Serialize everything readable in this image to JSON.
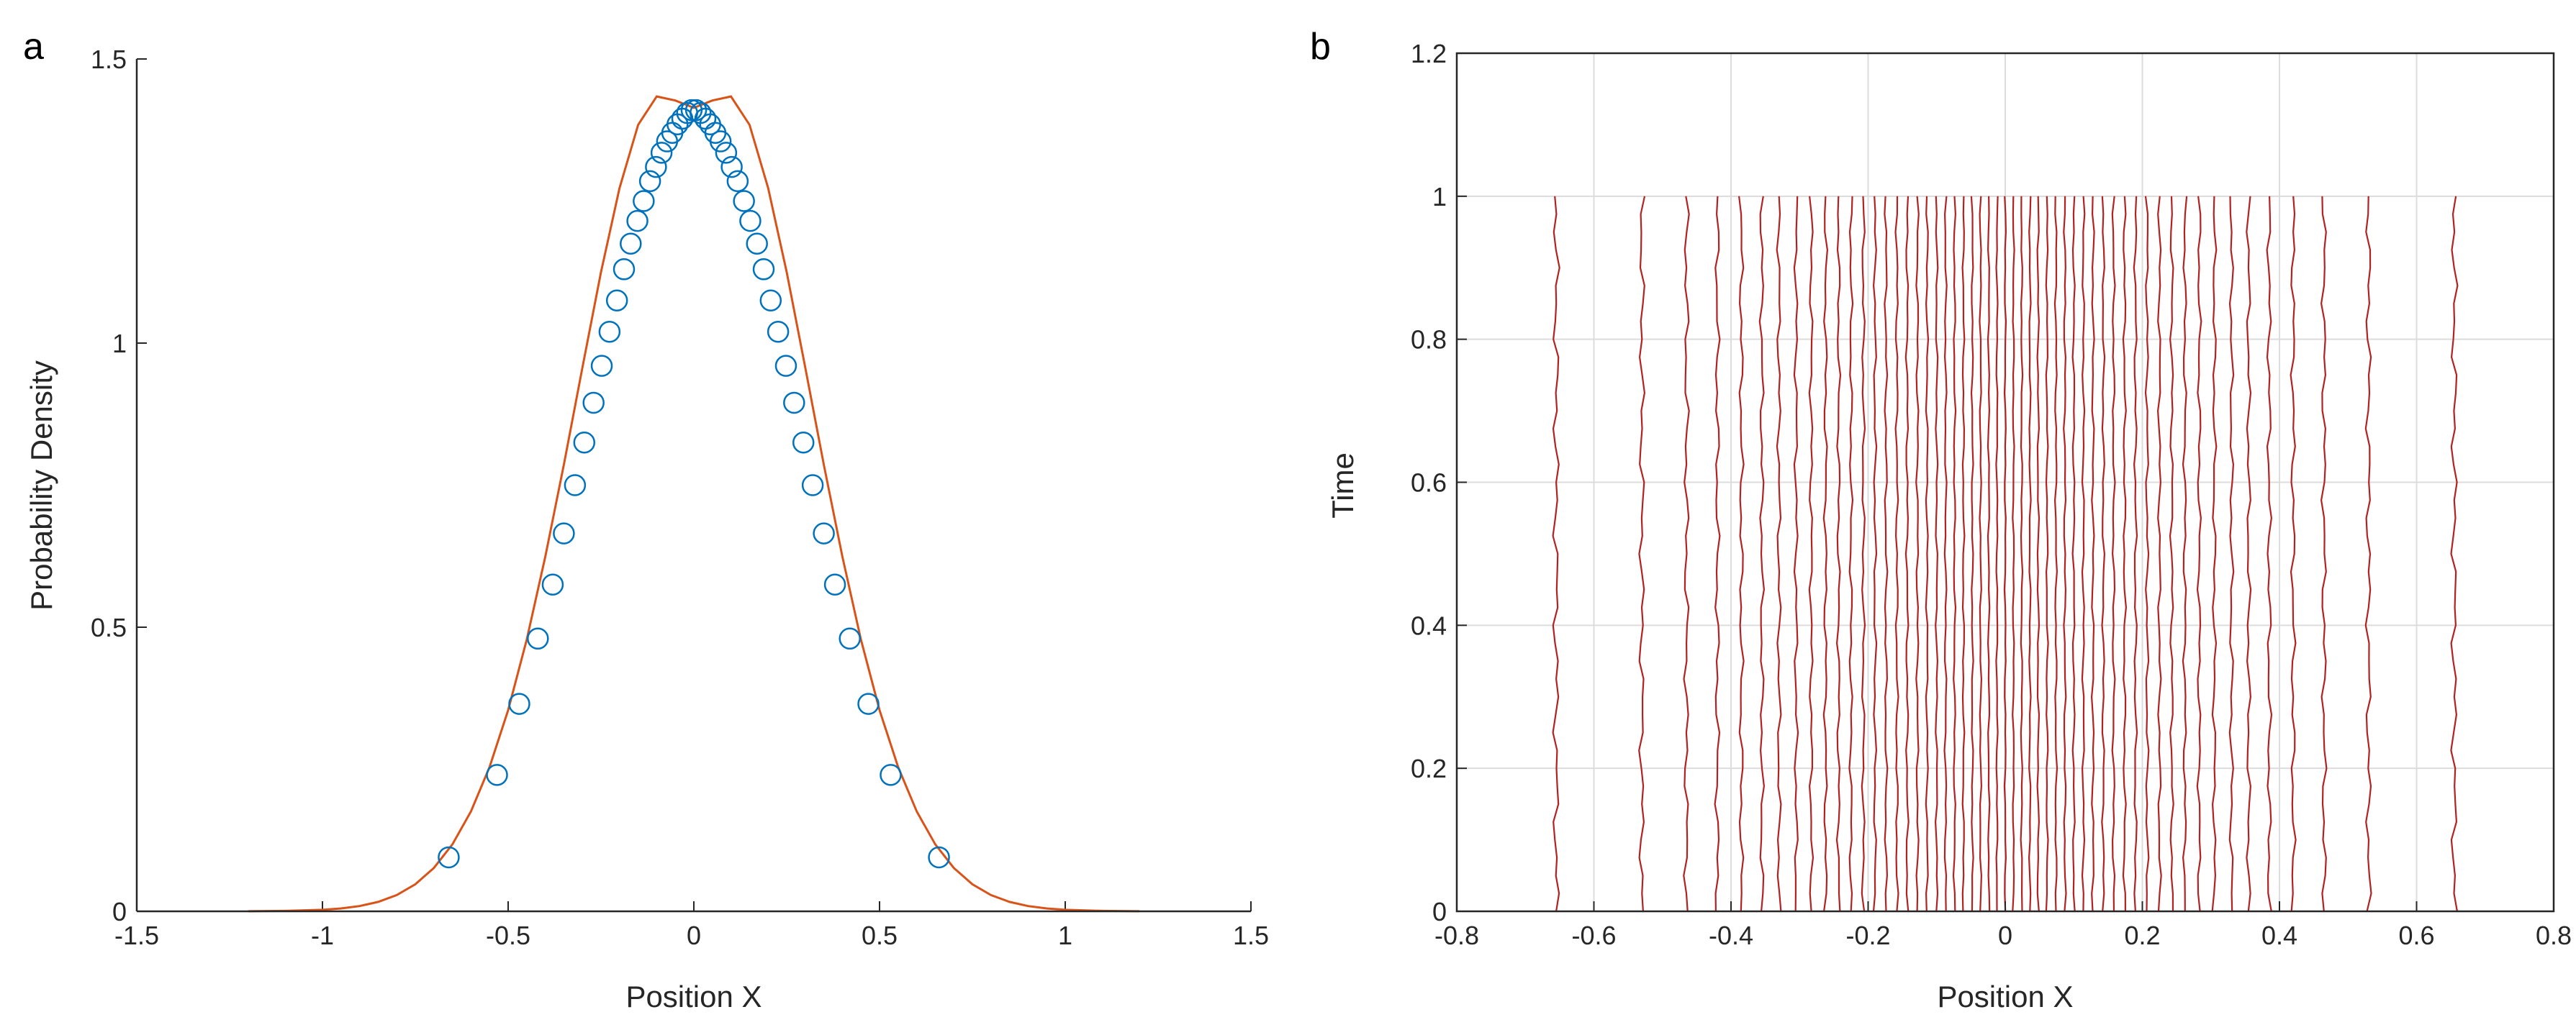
{
  "chart_data": [
    {
      "panel": "a",
      "type": "line",
      "xlabel": "Position X",
      "ylabel": "Probability Density",
      "xlim": [
        -1.5,
        1.5
      ],
      "ylim": [
        0,
        1.5
      ],
      "xticks": [
        "-1.5",
        "-1",
        "-0.5",
        "0",
        "0.5",
        "1",
        "1.5"
      ],
      "yticks": [
        "0",
        "0.5",
        "1",
        "1.5"
      ],
      "grid": false,
      "series": [
        {
          "style": "line",
          "color": "#D95319",
          "x": [
            -1.2,
            -1.1,
            -1.0,
            -0.95,
            -0.9,
            -0.85,
            -0.8,
            -0.75,
            -0.7,
            -0.65,
            -0.6,
            -0.55,
            -0.5,
            -0.45,
            -0.4,
            -0.35,
            -0.3,
            -0.25,
            -0.2,
            -0.15,
            -0.1,
            -0.05,
            0.0,
            0.05,
            0.1,
            0.15,
            0.2,
            0.25,
            0.3,
            0.35,
            0.4,
            0.45,
            0.5,
            0.55,
            0.6,
            0.65,
            0.7,
            0.75,
            0.8,
            0.85,
            0.9,
            0.95,
            1.0,
            1.1,
            1.2
          ],
          "y": [
            0.0001,
            0.0007,
            0.0026,
            0.005,
            0.0093,
            0.0166,
            0.0286,
            0.0476,
            0.0763,
            0.118,
            0.176,
            0.254,
            0.354,
            0.478,
            0.624,
            0.786,
            0.957,
            1.125,
            1.273,
            1.384,
            1.434,
            1.427,
            1.414,
            1.427,
            1.434,
            1.384,
            1.273,
            1.125,
            0.957,
            0.786,
            0.624,
            0.478,
            0.354,
            0.254,
            0.176,
            0.118,
            0.0763,
            0.0476,
            0.0286,
            0.0166,
            0.0093,
            0.005,
            0.0026,
            0.0007,
            0.0001
          ]
        },
        {
          "style": "markers",
          "marker": "circle",
          "color": "#0072BD",
          "x": [
            -0.66,
            -0.53,
            -0.47,
            -0.42,
            -0.38,
            -0.35,
            -0.32,
            -0.295,
            -0.27,
            -0.248,
            -0.227,
            -0.207,
            -0.188,
            -0.17,
            -0.152,
            -0.135,
            -0.118,
            -0.102,
            -0.087,
            -0.072,
            -0.058,
            -0.044,
            -0.031,
            -0.018,
            -0.006,
            0.006,
            0.018,
            0.031,
            0.044,
            0.058,
            0.072,
            0.087,
            0.102,
            0.118,
            0.135,
            0.152,
            0.17,
            0.188,
            0.207,
            0.227,
            0.248,
            0.27,
            0.295,
            0.32,
            0.35,
            0.38,
            0.42,
            0.47,
            0.53,
            0.66
          ],
          "y": [
            0.095,
            0.24,
            0.365,
            0.48,
            0.575,
            0.665,
            0.75,
            0.825,
            0.895,
            0.96,
            1.02,
            1.075,
            1.13,
            1.175,
            1.215,
            1.25,
            1.285,
            1.31,
            1.335,
            1.355,
            1.37,
            1.385,
            1.395,
            1.405,
            1.41,
            1.41,
            1.405,
            1.395,
            1.385,
            1.37,
            1.355,
            1.335,
            1.31,
            1.285,
            1.25,
            1.215,
            1.175,
            1.13,
            1.075,
            1.02,
            0.96,
            0.895,
            0.825,
            0.75,
            0.665,
            0.575,
            0.48,
            0.365,
            0.24,
            0.095
          ]
        }
      ]
    },
    {
      "panel": "b",
      "type": "line",
      "xlabel": "Position X",
      "ylabel": "Time",
      "xlim": [
        -0.8,
        0.8
      ],
      "ylim": [
        0,
        1.2
      ],
      "xticks": [
        "-0.8",
        "-0.6",
        "-0.4",
        "-0.2",
        "0",
        "0.2",
        "0.4",
        "0.6",
        "0.8"
      ],
      "yticks": [
        "0",
        "0.2",
        "0.4",
        "0.6",
        "0.8",
        "1",
        "1.2"
      ],
      "grid": true,
      "line_color": "#B22222",
      "trajectory_t_range": [
        0,
        1
      ],
      "trajectory_x_positions": [
        -0.655,
        -0.53,
        -0.465,
        -0.42,
        -0.385,
        -0.355,
        -0.33,
        -0.305,
        -0.283,
        -0.262,
        -0.243,
        -0.225,
        -0.207,
        -0.19,
        -0.174,
        -0.158,
        -0.143,
        -0.128,
        -0.114,
        -0.1,
        -0.087,
        -0.074,
        -0.061,
        -0.048,
        -0.036,
        -0.024,
        -0.012,
        0.0,
        0.012,
        0.024,
        0.036,
        0.048,
        0.061,
        0.074,
        0.087,
        0.1,
        0.114,
        0.128,
        0.143,
        0.158,
        0.174,
        0.19,
        0.207,
        0.225,
        0.243,
        0.262,
        0.283,
        0.305,
        0.33,
        0.355,
        0.385,
        0.42,
        0.465,
        0.53,
        0.655
      ]
    }
  ],
  "panels": {
    "a": {
      "letter": "a"
    },
    "b": {
      "letter": "b"
    }
  }
}
